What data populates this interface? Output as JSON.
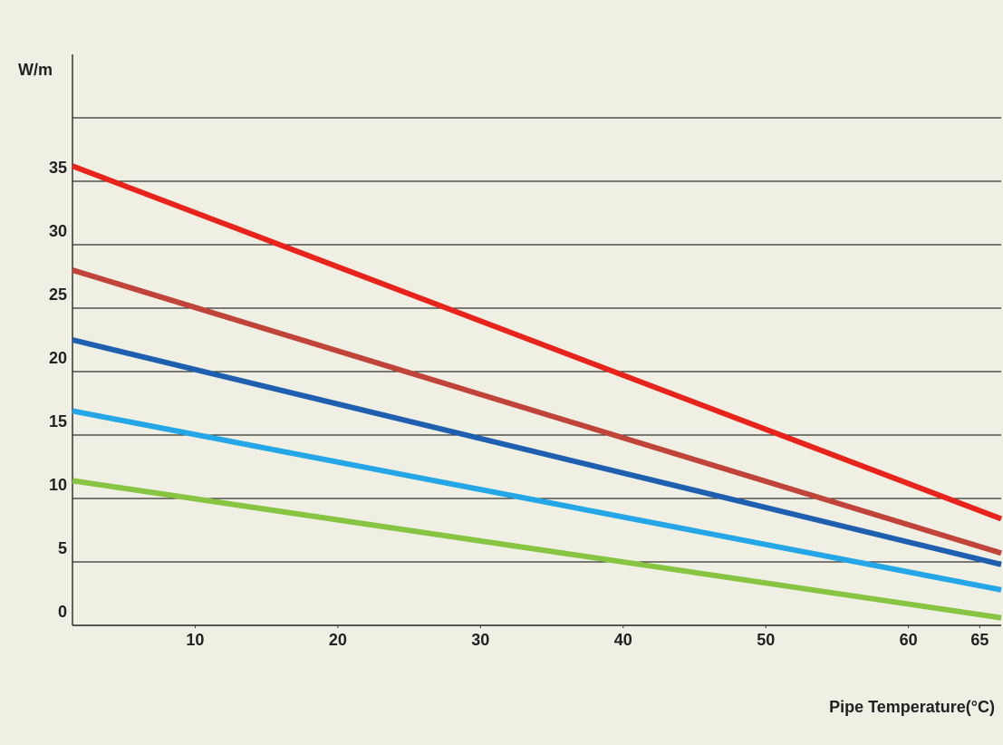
{
  "chart_data": {
    "type": "line",
    "y_label": "W/m",
    "x_label": "Pipe Temperature(°C)",
    "xlim": [
      1.4,
      66.5
    ],
    "xticks": [
      10,
      20,
      30,
      40,
      50,
      60,
      65
    ],
    "ylim": [
      0,
      45
    ],
    "yticks": [
      0,
      5,
      10,
      15,
      20,
      25,
      30,
      35,
      {
        "value": 40,
        "label": null
      }
    ],
    "grid": true,
    "series": [
      {
        "color": "#e8231c",
        "x": [
          1.4,
          66.5
        ],
        "values": [
          36.2,
          8.4
        ]
      },
      {
        "color": "#c0443a",
        "x": [
          1.4,
          66.5
        ],
        "values": [
          28.0,
          5.7
        ]
      },
      {
        "color": "#1f5fb0",
        "x": [
          1.4,
          66.5
        ],
        "values": [
          22.5,
          4.8
        ]
      },
      {
        "color": "#25a6e6",
        "x": [
          1.4,
          66.5
        ],
        "values": [
          16.9,
          2.8
        ]
      },
      {
        "color": "#86c441",
        "x": [
          1.4,
          66.5
        ],
        "values": [
          11.4,
          0.6
        ]
      }
    ]
  }
}
